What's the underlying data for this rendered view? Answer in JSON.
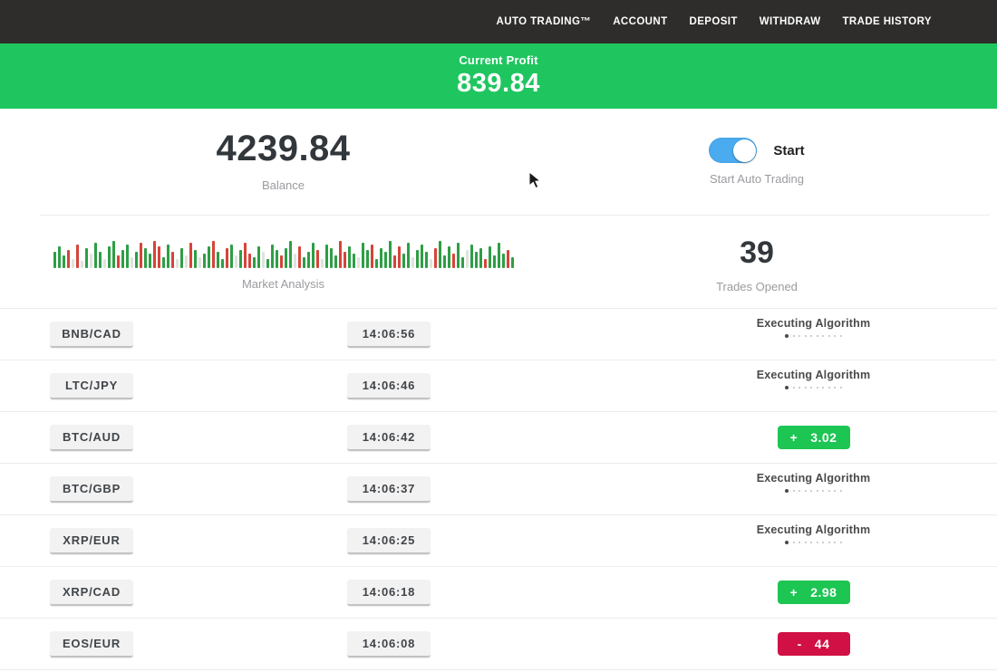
{
  "nav": {
    "items": [
      {
        "label": "AUTO TRADING™"
      },
      {
        "label": "ACCOUNT"
      },
      {
        "label": "DEPOSIT"
      },
      {
        "label": "WITHDRAW"
      },
      {
        "label": "TRADE HISTORY"
      }
    ]
  },
  "profit_banner": {
    "label": "Current Profit",
    "value": "839.84",
    "bg": "#1fc660"
  },
  "account": {
    "balance": "4239.84",
    "balance_label": "Balance",
    "toggle_label": "Start",
    "toggle_caption": "Start Auto Trading",
    "toggle_on": true,
    "toggle_color": "#4aabef"
  },
  "market": {
    "caption": "Market Analysis",
    "colors": {
      "g": "#2e9e45",
      "r": "#d6443a",
      "p": "#dfe3de"
    },
    "bars": [
      [
        18,
        "g"
      ],
      [
        24,
        "g"
      ],
      [
        14,
        "g"
      ],
      [
        20,
        "r"
      ],
      [
        10,
        "p"
      ],
      [
        26,
        "r"
      ],
      [
        8,
        "p"
      ],
      [
        22,
        "g"
      ],
      [
        16,
        "p"
      ],
      [
        28,
        "g"
      ],
      [
        18,
        "g"
      ],
      [
        10,
        "p"
      ],
      [
        24,
        "g"
      ],
      [
        30,
        "g"
      ],
      [
        14,
        "r"
      ],
      [
        20,
        "g"
      ],
      [
        26,
        "g"
      ],
      [
        12,
        "p"
      ],
      [
        18,
        "g"
      ],
      [
        28,
        "r"
      ],
      [
        22,
        "g"
      ],
      [
        16,
        "g"
      ],
      [
        30,
        "r"
      ],
      [
        24,
        "r"
      ],
      [
        12,
        "g"
      ],
      [
        26,
        "g"
      ],
      [
        18,
        "r"
      ],
      [
        10,
        "p"
      ],
      [
        22,
        "g"
      ],
      [
        14,
        "p"
      ],
      [
        28,
        "r"
      ],
      [
        20,
        "g"
      ],
      [
        12,
        "p"
      ],
      [
        16,
        "g"
      ],
      [
        24,
        "g"
      ],
      [
        30,
        "r"
      ],
      [
        18,
        "g"
      ],
      [
        10,
        "g"
      ],
      [
        22,
        "r"
      ],
      [
        26,
        "g"
      ],
      [
        14,
        "p"
      ],
      [
        20,
        "g"
      ],
      [
        28,
        "r"
      ],
      [
        16,
        "r"
      ],
      [
        12,
        "g"
      ],
      [
        24,
        "g"
      ],
      [
        18,
        "p"
      ],
      [
        10,
        "g"
      ],
      [
        26,
        "g"
      ],
      [
        20,
        "g"
      ],
      [
        14,
        "r"
      ],
      [
        22,
        "g"
      ],
      [
        30,
        "g"
      ],
      [
        16,
        "p"
      ],
      [
        24,
        "r"
      ],
      [
        12,
        "g"
      ],
      [
        18,
        "g"
      ],
      [
        28,
        "g"
      ],
      [
        20,
        "r"
      ],
      [
        10,
        "p"
      ],
      [
        26,
        "g"
      ],
      [
        22,
        "g"
      ],
      [
        14,
        "g"
      ],
      [
        30,
        "r"
      ],
      [
        18,
        "r"
      ],
      [
        24,
        "g"
      ],
      [
        16,
        "g"
      ],
      [
        12,
        "p"
      ],
      [
        28,
        "g"
      ],
      [
        20,
        "g"
      ],
      [
        26,
        "r"
      ],
      [
        10,
        "g"
      ],
      [
        22,
        "g"
      ],
      [
        18,
        "g"
      ],
      [
        30,
        "g"
      ],
      [
        14,
        "r"
      ],
      [
        24,
        "r"
      ],
      [
        16,
        "g"
      ],
      [
        28,
        "g"
      ],
      [
        12,
        "p"
      ],
      [
        20,
        "g"
      ],
      [
        26,
        "g"
      ],
      [
        18,
        "g"
      ],
      [
        10,
        "p"
      ],
      [
        22,
        "r"
      ],
      [
        30,
        "g"
      ],
      [
        14,
        "g"
      ],
      [
        24,
        "g"
      ],
      [
        16,
        "r"
      ],
      [
        28,
        "g"
      ],
      [
        12,
        "g"
      ],
      [
        20,
        "p"
      ],
      [
        26,
        "g"
      ],
      [
        18,
        "g"
      ],
      [
        22,
        "g"
      ],
      [
        10,
        "r"
      ],
      [
        24,
        "g"
      ],
      [
        14,
        "g"
      ],
      [
        28,
        "g"
      ],
      [
        16,
        "g"
      ],
      [
        20,
        "r"
      ],
      [
        12,
        "g"
      ]
    ]
  },
  "trades_opened": {
    "value": "39",
    "label": "Trades Opened"
  },
  "table": {
    "executing_dots_total": 10,
    "executing_dots_active": 1,
    "rows": [
      {
        "pair": "BNB/CAD",
        "time": "14:06:56",
        "status": {
          "type": "executing",
          "label": "Executing Algorithm"
        }
      },
      {
        "pair": "LTC/JPY",
        "time": "14:06:46",
        "status": {
          "type": "executing",
          "label": "Executing Algorithm"
        }
      },
      {
        "pair": "BTC/AUD",
        "time": "14:06:42",
        "status": {
          "type": "profit",
          "sign": "+",
          "value": "3.02"
        }
      },
      {
        "pair": "BTC/GBP",
        "time": "14:06:37",
        "status": {
          "type": "executing",
          "label": "Executing Algorithm"
        }
      },
      {
        "pair": "XRP/EUR",
        "time": "14:06:25",
        "status": {
          "type": "executing",
          "label": "Executing Algorithm"
        }
      },
      {
        "pair": "XRP/CAD",
        "time": "14:06:18",
        "status": {
          "type": "profit",
          "sign": "+",
          "value": "2.98"
        }
      },
      {
        "pair": "EOS/EUR",
        "time": "14:06:08",
        "status": {
          "type": "loss",
          "sign": "-",
          "value": "44"
        }
      }
    ]
  },
  "colors": {
    "nav_bg": "#2e2d2b",
    "banner_green": "#1fc660",
    "badge_green": "#1dc553",
    "badge_red": "#d11045"
  }
}
